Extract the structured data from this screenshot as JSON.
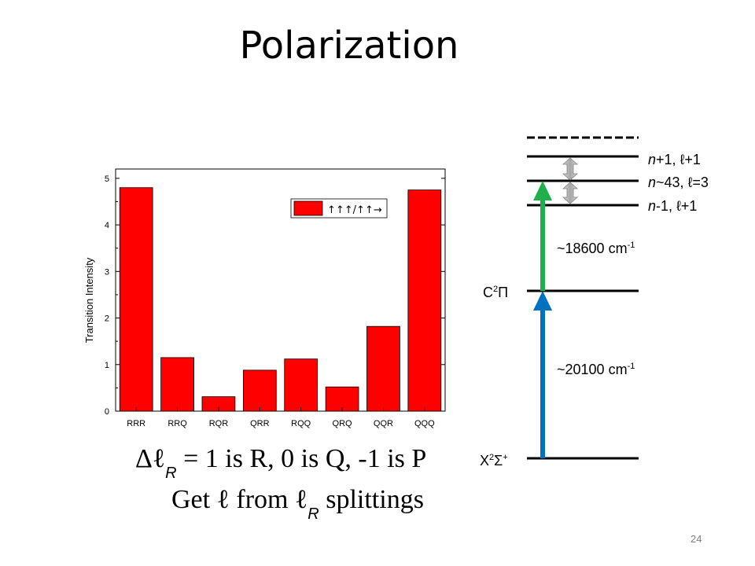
{
  "title": "Polarization",
  "chart_data": {
    "type": "bar",
    "categories": [
      "RRR",
      "RRQ",
      "RQR",
      "QRR",
      "RQQ",
      "QRQ",
      "QQR",
      "QQQ"
    ],
    "values": [
      4.8,
      1.15,
      0.31,
      0.88,
      1.12,
      0.52,
      1.82,
      4.75
    ],
    "ylabel": "Transition Intensity",
    "ylim": [
      0,
      5.2
    ],
    "yticks": [
      "0",
      "1",
      "2",
      "3",
      "4",
      "5"
    ],
    "legend": "↑↑↑/↑↑→",
    "bar_color": "#ff0000"
  },
  "formula1": {
    "delta_l": "Δℓ",
    "sub": "R",
    "rest": " = 1 is R, 0 is Q, -1 is P"
  },
  "formula2": {
    "get": "Get ℓ",
    "from": " from ℓ",
    "sub": "R",
    "rest": " splittings"
  },
  "energy": {
    "level_high_n": "n",
    "level_high_rest": "+1, ℓ+1",
    "level_mid_n": "n",
    "level_mid_rest": "~43, ℓ=3",
    "level_low_n": "n",
    "level_low_rest": "-1, ℓ+1",
    "transition_upper": "~18600 cm",
    "transition_upper_exp": "-1",
    "transition_lower": "~20100 cm",
    "transition_lower_exp": "-1",
    "state_c": "C",
    "state_c_sup": "2",
    "state_c_sym": "Π",
    "state_x": "X",
    "state_x_sup": "2",
    "state_x_sym": "Σ",
    "state_x_sup2": "+",
    "colors": {
      "green": "#1fb04c",
      "blue": "#0070c0",
      "gray": "#a6a6a6"
    }
  },
  "page_number": "24"
}
